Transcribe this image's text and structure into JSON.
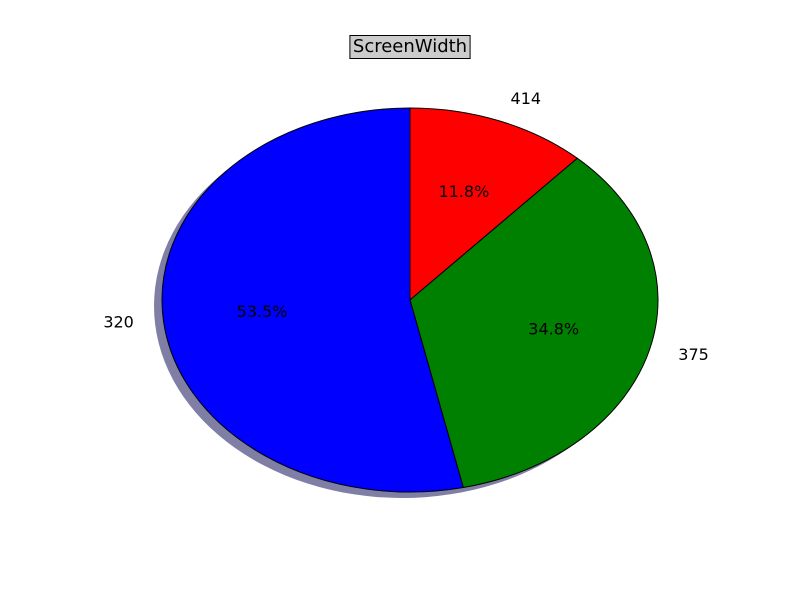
{
  "chart_data": {
    "type": "pie",
    "title": "ScreenWidth",
    "title_box": true,
    "shadow": true,
    "categories": [
      "414",
      "375",
      "320"
    ],
    "values": [
      11.8,
      34.8,
      53.5
    ],
    "percent_labels": [
      "11.8%",
      "34.8%",
      "53.5%"
    ],
    "colors": [
      "#ff0000",
      "#008000",
      "#0000ff"
    ],
    "start_angle_deg": 90,
    "direction": "clockwise"
  }
}
